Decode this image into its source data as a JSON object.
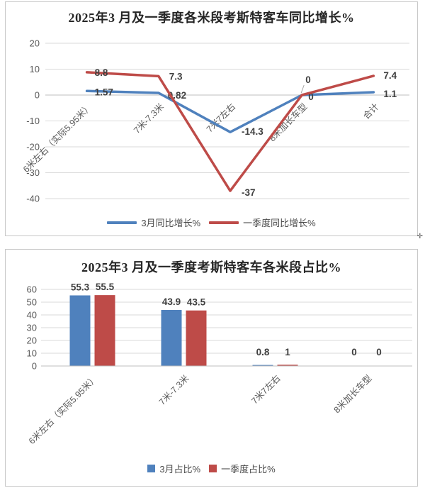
{
  "colors": {
    "series_march": "#4F81BD",
    "series_quarter": "#BE4B48",
    "grid": "#DADADA",
    "axis_line": "#BFBFBF",
    "tick_text": "#595959",
    "category_text": "#595959",
    "title_text": "#262626",
    "data_label_text": "#3F3F3F",
    "panel_border": "#C9C9C9",
    "leader_line": "#A6A6A6",
    "background": "#FFFFFF"
  },
  "artifacts": {
    "cursor_glyph": "✛"
  },
  "chart_data": [
    {
      "type": "line",
      "title": "2025年3 月及一季度各米段考斯特客车同比增长%",
      "categories": [
        "6米左右（实际5.95米）",
        "7米-7.3米",
        "7米7左右",
        "8米加长车型",
        "合计"
      ],
      "series": [
        {
          "name": "3月同比增长%",
          "color": "#4F81BD",
          "values": [
            1.57,
            0.82,
            -14.3,
            0,
            1.1
          ],
          "labels": [
            "1.57",
            "0.82",
            "-14.3",
            "0",
            "1.1"
          ]
        },
        {
          "name": "一季度同比增长%",
          "color": "#BE4B48",
          "values": [
            8.8,
            7.3,
            -37,
            0,
            7.4
          ],
          "labels": [
            "8.8",
            "7.3",
            "-37",
            "0",
            "7.4"
          ]
        }
      ],
      "ylim": [
        -40,
        20
      ],
      "yticks": [
        20,
        10,
        0,
        -10,
        -20,
        -30,
        -40
      ],
      "grid": true,
      "legend_position": "bottom"
    },
    {
      "type": "bar",
      "title": "2025年3 月及一季度考斯特客车各米段占比%",
      "categories": [
        "6米左右（实际5.95米）",
        "7米-7.3米",
        "7米7左右",
        "8米加长车型"
      ],
      "series": [
        {
          "name": "3月占比%",
          "color": "#4F81BD",
          "values": [
            55.3,
            43.9,
            0.8,
            0
          ],
          "labels": [
            "55.3",
            "43.9",
            "0.8",
            "0"
          ]
        },
        {
          "name": "一季度占比%",
          "color": "#BE4B48",
          "values": [
            55.5,
            43.5,
            1,
            0
          ],
          "labels": [
            "55.5",
            "43.5",
            "1",
            "0"
          ]
        }
      ],
      "ylim": [
        0,
        60
      ],
      "yticks": [
        60,
        50,
        40,
        30,
        20,
        10,
        0
      ],
      "grid": true,
      "legend_position": "bottom"
    }
  ]
}
